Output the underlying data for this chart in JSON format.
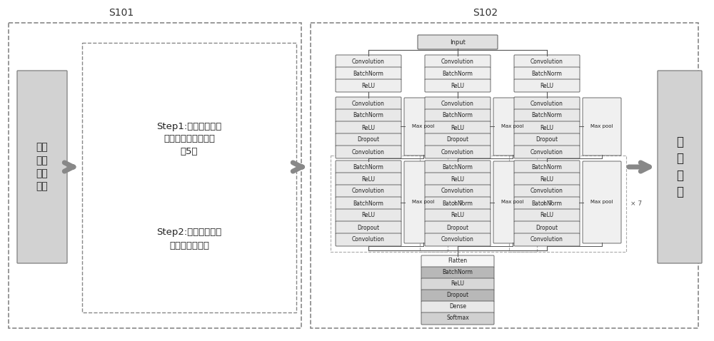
{
  "s101_label": "S101",
  "s102_label": "S102",
  "left_box_text": "去噪\n后的\n心电\n信号",
  "step1_text": "Step1:对心电信号进\n行切片处理，每个片\n段5秒",
  "step2_text": "Step2:对切片好的每\n段信号打上标签",
  "result_text": "分\n类\n结\n果",
  "input_label": "Input",
  "block1_labels": [
    "Convolution",
    "BatchNorm",
    "ReLU"
  ],
  "block2_labels": [
    "Convolution",
    "BatchNorm",
    "ReLU",
    "Dropout",
    "Convolution"
  ],
  "block3_labels": [
    "BatchNorm",
    "ReLU",
    "Convolution",
    "BatchNorm",
    "ReLU",
    "Dropout",
    "Convolution"
  ],
  "maxpool_label": "Max pool",
  "final_labels": [
    "Flatten",
    "BatchNorm",
    "ReLU",
    "Dropout",
    "Dense",
    "Softmax"
  ],
  "final_fills": [
    "#f5f5f5",
    "#b8b8b8",
    "#d8d8d8",
    "#b8b8b8",
    "#e8e8e8",
    "#d0d0d0"
  ],
  "repeat_label": "× 7",
  "bg_color": "#ffffff",
  "border_color": "#555555",
  "dashed_color": "#999999",
  "arrow_color": "#777777",
  "block_fill_light": "#eeeeee",
  "block_fill_dark": "#d0d0d0",
  "maxpool_fill": "#f0f0f0",
  "input_fill": "#e0e0e0",
  "left_right_fill": "#d0d0d0"
}
